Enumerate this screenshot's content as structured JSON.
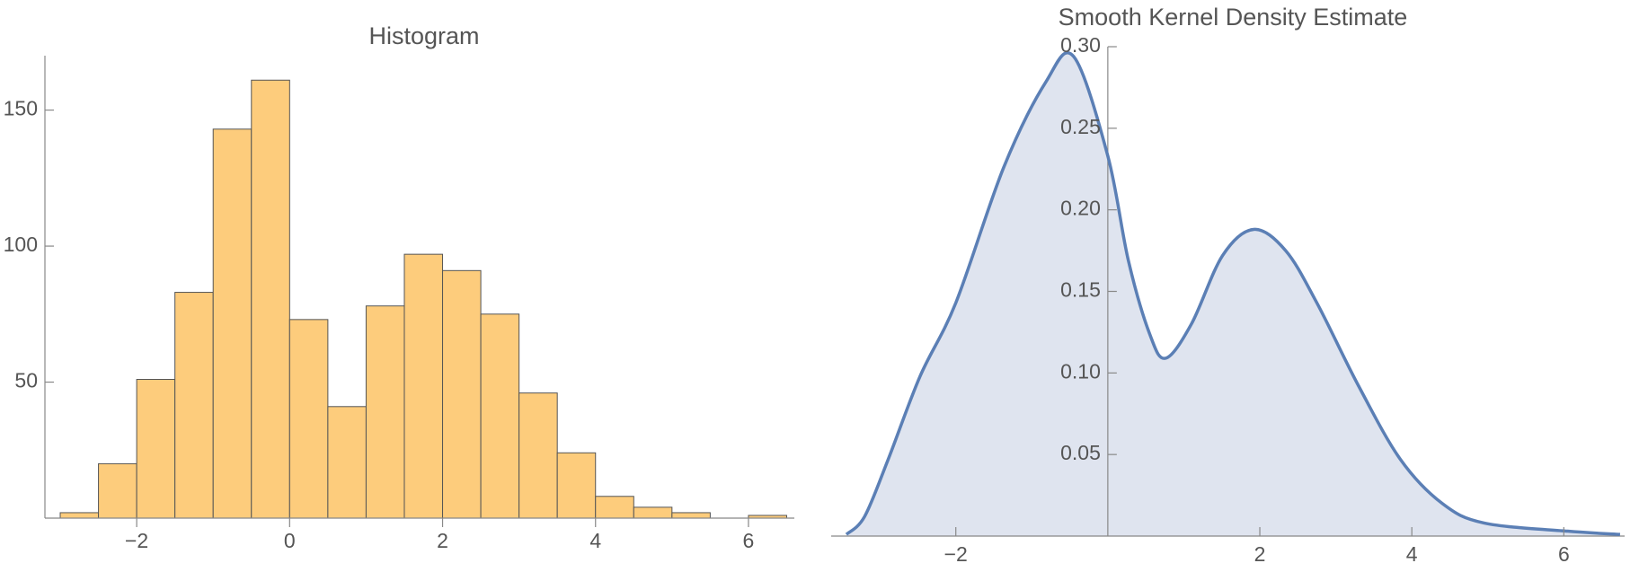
{
  "chart_data": [
    {
      "type": "histogram",
      "title": "Histogram",
      "bins": [
        -3,
        -2.5,
        -2,
        -1.5,
        -1,
        -0.5,
        0,
        0.5,
        1,
        1.5,
        2,
        2.5,
        3,
        3.5,
        4,
        4.5,
        5,
        5.5,
        6,
        6.5
      ],
      "values": [
        2,
        20,
        51,
        83,
        143,
        161,
        73,
        41,
        78,
        97,
        91,
        75,
        46,
        24,
        8,
        4,
        2,
        0,
        1
      ],
      "color": "#fdcc7c",
      "xlim": [
        -3.2,
        6.6
      ],
      "ylim": [
        0,
        170
      ],
      "xticks": [
        {
          "value": -2,
          "label": "−2"
        },
        0,
        2,
        4,
        6
      ],
      "yticks": [
        50,
        100,
        150
      ]
    },
    {
      "type": "area",
      "title": "Smooth Kernel Density Estimate",
      "x": [
        -3.44,
        -3.2,
        -2.89,
        -2.47,
        -2.0,
        -1.37,
        -0.82,
        -0.45,
        0,
        0.27,
        0.55,
        0.76,
        1.1,
        1.51,
        1.92,
        2.34,
        2.75,
        3.3,
        3.85,
        4.4,
        4.95,
        6.05,
        6.74
      ],
      "values": [
        0.001,
        0.012,
        0.047,
        0.098,
        0.143,
        0.226,
        0.278,
        0.294,
        0.233,
        0.169,
        0.124,
        0.109,
        0.13,
        0.172,
        0.188,
        0.175,
        0.143,
        0.092,
        0.047,
        0.02,
        0.008,
        0.003,
        0.001
      ],
      "color": "#5b7fb5",
      "xlim": [
        -3.64,
        6.8
      ],
      "ylim": [
        0,
        0.3
      ],
      "xticks": [
        {
          "value": -2,
          "label": "−2"
        },
        2,
        4,
        6
      ],
      "yticks": [
        0.05,
        {
          "value": 0.1,
          "label": "0.10"
        },
        0.15,
        {
          "value": 0.2,
          "label": "0.20"
        },
        0.25,
        {
          "value": 0.3,
          "label": "0.30"
        }
      ]
    }
  ]
}
